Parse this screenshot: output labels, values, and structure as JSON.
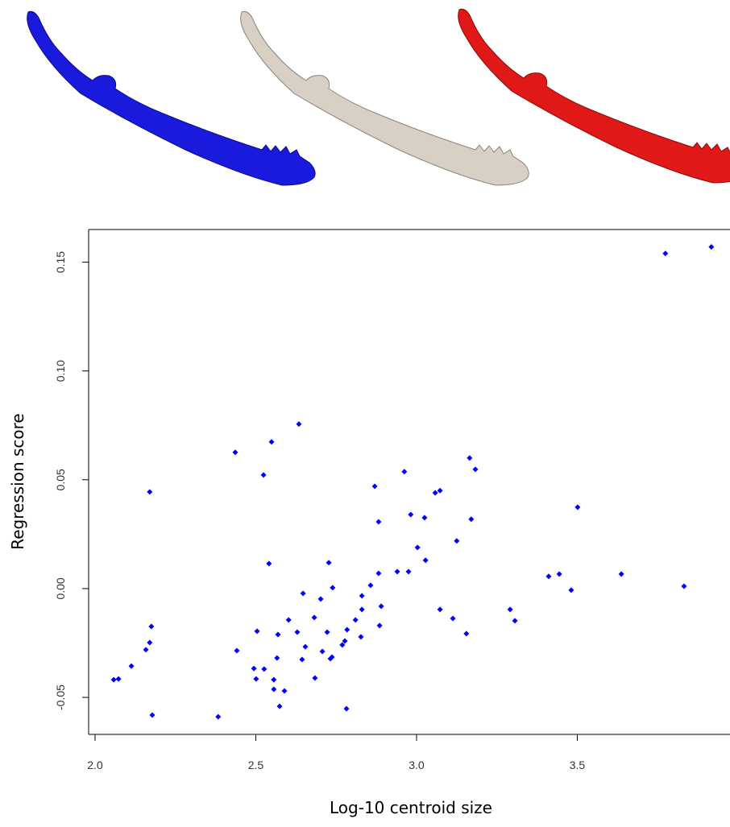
{
  "chart_data": {
    "type": "scatter",
    "x_label": "Log-10 centroid size",
    "y_label": "Regression score",
    "color": "#0000ff",
    "xlim": [
      1.98,
      3.975
    ],
    "ylim": [
      -0.067,
      0.165
    ],
    "xticks": [
      {
        "value": 2,
        "label": "2.0"
      },
      2.5,
      {
        "value": 3,
        "label": "3.0"
      },
      3.5
    ],
    "yticks": [
      -0.05,
      {
        "value": 0,
        "label": "0.00"
      },
      0.05,
      {
        "value": 0.1,
        "label": "0.10"
      },
      0.15
    ],
    "x": [
      3.917,
      3.774,
      2.634,
      2.436,
      2.549,
      2.524,
      2.17,
      3.165,
      3.183,
      2.962,
      2.87,
      3.073,
      3.058,
      3.501,
      2.982,
      3.025,
      2.882,
      3.17,
      3.125,
      3.003,
      3.028,
      2.541,
      2.727,
      2.94,
      2.975,
      2.882,
      3.444,
      3.411,
      3.637,
      3.832,
      3.481,
      2.739,
      2.857,
      2.647,
      2.83,
      2.702,
      2.89,
      3.073,
      3.291,
      2.83,
      2.682,
      2.602,
      3.113,
      3.306,
      2.81,
      2.175,
      2.885,
      2.629,
      2.504,
      2.722,
      2.784,
      2.569,
      3.155,
      2.827,
      2.17,
      2.777,
      2.654,
      2.769,
      2.158,
      2.441,
      2.707,
      2.737,
      2.732,
      2.566,
      2.644,
      2.113,
      2.494,
      2.526,
      2.501,
      2.684,
      2.556,
      2.073,
      2.058,
      2.556,
      2.589,
      2.574,
      2.782,
      2.178,
      2.383
    ],
    "values": [
      0.157,
      0.154,
      0.0756,
      0.0626,
      0.0674,
      0.0522,
      0.0444,
      0.06,
      0.0548,
      0.0537,
      0.047,
      0.045,
      0.044,
      0.0374,
      0.034,
      0.0326,
      0.0307,
      0.0319,
      0.0219,
      0.0189,
      0.013,
      0.0115,
      0.0119,
      0.0078,
      0.0078,
      0.007,
      0.0067,
      0.0056,
      0.0067,
      0.0011,
      -0.0007,
      0.0004,
      0.0015,
      -0.0022,
      -0.0033,
      -0.0048,
      -0.0081,
      -0.0096,
      -0.0096,
      -0.0096,
      -0.0133,
      -0.0144,
      -0.0137,
      -0.0148,
      -0.0144,
      -0.0174,
      -0.017,
      -0.02,
      -0.0196,
      -0.02,
      -0.0189,
      -0.0211,
      -0.0207,
      -0.0222,
      -0.0248,
      -0.0241,
      -0.0267,
      -0.0259,
      -0.0281,
      -0.0285,
      -0.0289,
      -0.0315,
      -0.0322,
      -0.0319,
      -0.0326,
      -0.0356,
      -0.0367,
      -0.037,
      -0.0415,
      -0.0411,
      -0.0419,
      -0.0415,
      -0.0419,
      -0.0463,
      -0.047,
      -0.0541,
      -0.0552,
      -0.0581,
      -0.0589
    ]
  }
}
